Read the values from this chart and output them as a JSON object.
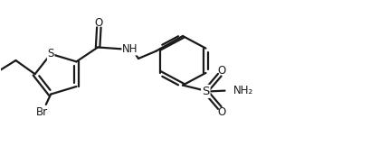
{
  "bg_color": "#ffffff",
  "line_color": "#1a1a1a",
  "line_width": 1.6,
  "font_size": 8.5,
  "figsize": [
    4.3,
    1.72
  ],
  "dpi": 100,
  "xlim": [
    0,
    10.5
  ],
  "ylim": [
    0,
    4.5
  ]
}
